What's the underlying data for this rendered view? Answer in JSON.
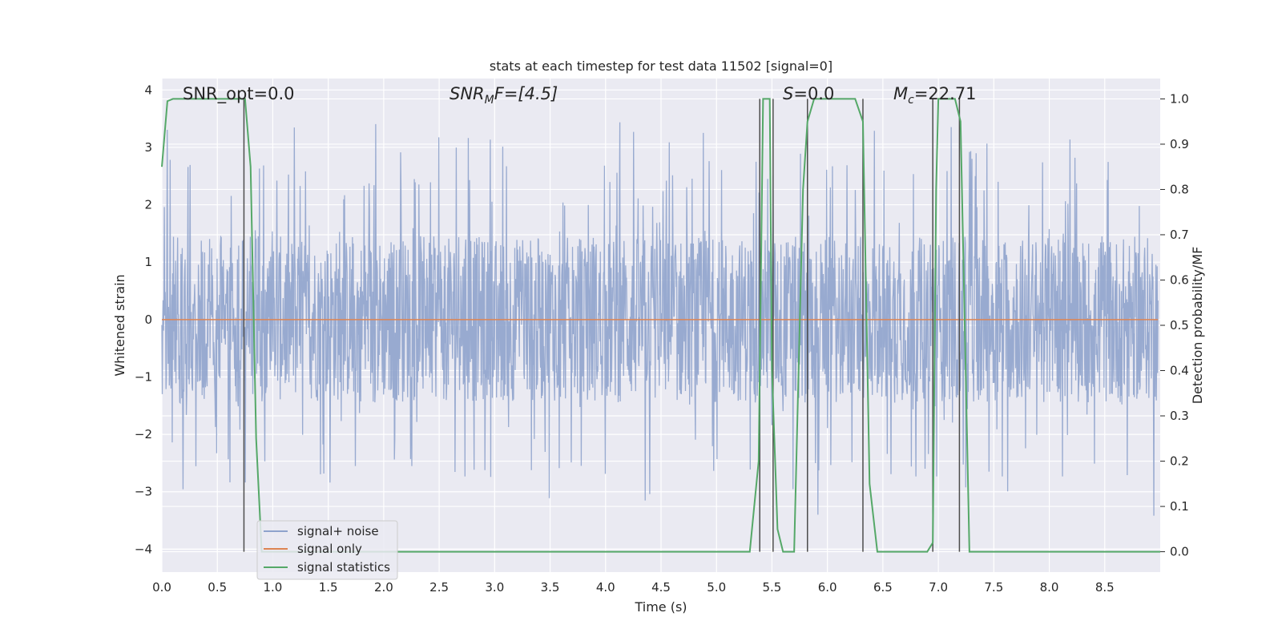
{
  "chart_data": {
    "type": "line",
    "title": "stats at each timestep for test data 11502 [signal=0]",
    "xlabel": "Time (s)",
    "ylabel": "Whitened strain",
    "y2label": "Detection probability/MF",
    "xlim": [
      0.0,
      9.0
    ],
    "ylim": [
      -4.4,
      4.2
    ],
    "y2lim": [
      -0.045,
      1.045
    ],
    "xticks": [
      "0.0",
      "0.5",
      "1.0",
      "1.5",
      "2.0",
      "2.5",
      "3.0",
      "3.5",
      "4.0",
      "4.5",
      "5.0",
      "5.5",
      "6.0",
      "6.5",
      "7.0",
      "7.5",
      "8.0",
      "8.5"
    ],
    "yticks": [
      "4",
      "3",
      "2",
      "1",
      "0",
      "−1",
      "−2",
      "−3",
      "−4"
    ],
    "y2ticks": [
      "1.0",
      "0.9",
      "0.8",
      "0.7",
      "0.6",
      "0.5",
      "0.4",
      "0.3",
      "0.2",
      "0.1",
      "0.0"
    ],
    "grid": true,
    "legend_position": "lower-left",
    "annotations": {
      "snr_opt": "SNR_opt=0.0",
      "snr_mf_main": "SNR",
      "snr_mf_sub": "M",
      "snr_mf_rest": "F=[4.5]",
      "s_main": "S",
      "s_rest": "=0.0",
      "mc_main": "M",
      "mc_sub": "c",
      "mc_rest": "=22.71"
    },
    "series": [
      {
        "name": "signal+ noise",
        "color": "#8fa3cc",
        "kind": "noise",
        "amplitude_typical": 1.45,
        "amplitude_peak": 3.45
      },
      {
        "name": "signal only",
        "color": "#dd8452",
        "values_constant": 0.0
      },
      {
        "name": "signal statistics",
        "color": "#55a868",
        "axis": "right",
        "x": [
          0.0,
          0.05,
          0.1,
          0.2,
          0.4,
          0.6,
          0.7,
          0.75,
          0.8,
          0.85,
          0.9,
          1.0,
          2.0,
          3.0,
          4.0,
          5.0,
          5.3,
          5.38,
          5.42,
          5.48,
          5.5,
          5.55,
          5.6,
          5.7,
          5.78,
          5.82,
          5.88,
          5.95,
          6.0,
          6.1,
          6.25,
          6.32,
          6.38,
          6.45,
          6.6,
          6.9,
          6.95,
          6.98,
          7.0,
          7.15,
          7.2,
          7.28,
          7.35,
          8.0,
          8.5,
          9.0
        ],
        "y": [
          0.85,
          0.995,
          1.0,
          1.0,
          1.0,
          1.0,
          1.0,
          1.0,
          0.85,
          0.25,
          0.0,
          0.0,
          0.0,
          0.0,
          0.0,
          0.0,
          0.0,
          0.2,
          1.0,
          1.0,
          0.4,
          0.05,
          0.0,
          0.0,
          0.8,
          0.95,
          1.0,
          1.0,
          1.0,
          1.0,
          1.0,
          0.95,
          0.15,
          0.0,
          0.0,
          0.0,
          0.02,
          0.8,
          1.0,
          1.0,
          0.95,
          0.0,
          0.0,
          0.0,
          0.0,
          0.0
        ]
      }
    ],
    "event_lines_x": [
      0.74,
      5.39,
      5.51,
      5.82,
      6.32,
      6.95,
      7.19
    ]
  },
  "legend": {
    "items": [
      {
        "label": "signal+ noise",
        "color": "#8fa3cc"
      },
      {
        "label": "signal only",
        "color": "#dd8452"
      },
      {
        "label": "signal statistics",
        "color": "#55a868"
      }
    ]
  }
}
